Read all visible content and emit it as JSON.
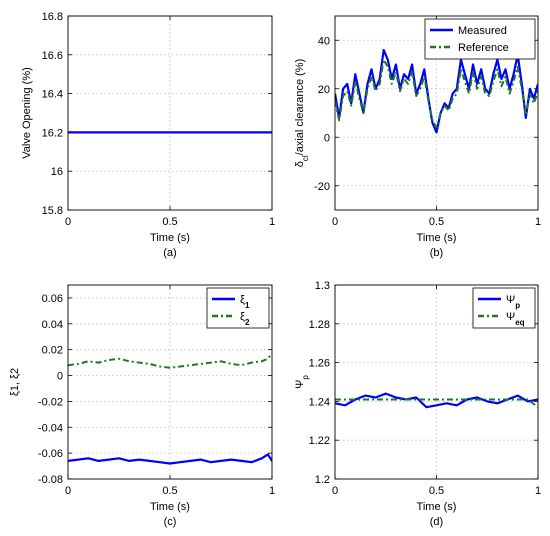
{
  "colors": {
    "measured": "#0000ff",
    "reference": "#1f7a1f",
    "grid": "#bfbfbf",
    "axis": "#000000"
  },
  "chart_data": [
    {
      "id": "a",
      "type": "line",
      "caption": "(a)",
      "xlabel": "Time (s)",
      "ylabel": "Valve Opening (%)",
      "xlim": [
        0,
        1
      ],
      "ylim": [
        15.8,
        16.8
      ],
      "xticks": [
        "0",
        "0.5",
        "1"
      ],
      "yticks": [
        "15.8",
        "16",
        "16.2",
        "16.4",
        "16.6",
        "16.8"
      ],
      "grid": true,
      "legend": null,
      "series": [
        {
          "style": "solid",
          "color": "#0000ff",
          "x": [
            0,
            1
          ],
          "y": [
            16.2,
            16.2
          ]
        }
      ]
    },
    {
      "id": "b",
      "type": "line",
      "caption": "(b)",
      "xlabel": "Time (s)",
      "ylabel": "δcl/axial clearance (%)",
      "ylabel_main": "δ",
      "ylabel_sub": "cl",
      "ylabel_rest": "/axial clearance (%)",
      "xlim": [
        0,
        1
      ],
      "ylim": [
        -30,
        50
      ],
      "xticks": [
        "0",
        "0.5",
        "1"
      ],
      "yticks": [
        "-20",
        "0",
        "20",
        "40"
      ],
      "grid": true,
      "legend": {
        "position": "top-right",
        "entries": [
          "Measured",
          "Reference"
        ]
      },
      "series": [
        {
          "name": "Measured",
          "style": "solid",
          "color": "#0000ff",
          "x": [
            0,
            0.02,
            0.04,
            0.06,
            0.08,
            0.1,
            0.12,
            0.14,
            0.16,
            0.18,
            0.2,
            0.22,
            0.24,
            0.26,
            0.28,
            0.3,
            0.32,
            0.34,
            0.36,
            0.38,
            0.4,
            0.42,
            0.44,
            0.46,
            0.48,
            0.5,
            0.52,
            0.54,
            0.56,
            0.58,
            0.6,
            0.62,
            0.64,
            0.66,
            0.68,
            0.7,
            0.72,
            0.74,
            0.76,
            0.78,
            0.8,
            0.82,
            0.84,
            0.86,
            0.88,
            0.9,
            0.92,
            0.94,
            0.96,
            0.98,
            1
          ],
          "y": [
            18,
            8,
            20,
            22,
            14,
            26,
            18,
            10,
            22,
            28,
            20,
            24,
            36,
            32,
            24,
            30,
            20,
            26,
            24,
            30,
            18,
            22,
            28,
            16,
            6,
            2,
            10,
            14,
            12,
            18,
            20,
            32,
            26,
            20,
            30,
            22,
            28,
            20,
            18,
            26,
            32,
            24,
            28,
            20,
            26,
            34,
            22,
            8,
            20,
            16,
            22
          ]
        },
        {
          "name": "Reference",
          "style": "dashdot",
          "color": "#1f7a1f",
          "x": [
            0,
            0.02,
            0.04,
            0.06,
            0.08,
            0.1,
            0.12,
            0.14,
            0.16,
            0.18,
            0.2,
            0.22,
            0.24,
            0.26,
            0.28,
            0.3,
            0.32,
            0.34,
            0.36,
            0.38,
            0.4,
            0.42,
            0.44,
            0.46,
            0.48,
            0.5,
            0.52,
            0.54,
            0.56,
            0.58,
            0.6,
            0.62,
            0.64,
            0.66,
            0.68,
            0.7,
            0.72,
            0.74,
            0.76,
            0.78,
            0.8,
            0.82,
            0.84,
            0.86,
            0.88,
            0.9,
            0.92,
            0.94,
            0.96,
            0.98,
            1
          ],
          "y": [
            15,
            7,
            17,
            19,
            13,
            23,
            16,
            10,
            20,
            25,
            19,
            22,
            32,
            29,
            22,
            27,
            19,
            24,
            22,
            27,
            17,
            20,
            25,
            15,
            7,
            4,
            10,
            13,
            11,
            16,
            18,
            28,
            23,
            18,
            27,
            20,
            25,
            18,
            17,
            23,
            28,
            21,
            25,
            18,
            23,
            29,
            20,
            9,
            18,
            14,
            19
          ]
        }
      ]
    },
    {
      "id": "c",
      "type": "line",
      "caption": "(c)",
      "xlabel": "Time (s)",
      "ylabel": "ξ1, ξ2",
      "xlim": [
        0,
        1
      ],
      "ylim": [
        -0.08,
        0.07
      ],
      "xticks": [
        "0",
        "0.5",
        "1"
      ],
      "yticks": [
        "-0.08",
        "-0.06",
        "-0.04",
        "-0.02",
        "0",
        "0.02",
        "0.04",
        "0.06"
      ],
      "grid": true,
      "legend": {
        "position": "top-right",
        "entries": [
          "ξ1",
          "ξ2"
        ],
        "main": [
          "ξ",
          "ξ"
        ],
        "sub": [
          "1",
          "2"
        ]
      },
      "series": [
        {
          "name": "ξ1",
          "style": "solid",
          "color": "#0000ff",
          "x": [
            0,
            0.05,
            0.1,
            0.15,
            0.2,
            0.25,
            0.3,
            0.35,
            0.4,
            0.45,
            0.5,
            0.55,
            0.6,
            0.65,
            0.7,
            0.75,
            0.8,
            0.85,
            0.9,
            0.95,
            0.98,
            1
          ],
          "y": [
            -0.066,
            -0.065,
            -0.064,
            -0.066,
            -0.065,
            -0.064,
            -0.066,
            -0.065,
            -0.066,
            -0.067,
            -0.068,
            -0.067,
            -0.066,
            -0.065,
            -0.067,
            -0.066,
            -0.065,
            -0.066,
            -0.067,
            -0.064,
            -0.061,
            -0.066
          ]
        },
        {
          "name": "ξ2",
          "style": "dashdot",
          "color": "#1f7a1f",
          "x": [
            0,
            0.05,
            0.1,
            0.15,
            0.2,
            0.25,
            0.3,
            0.35,
            0.4,
            0.45,
            0.5,
            0.55,
            0.6,
            0.65,
            0.7,
            0.75,
            0.8,
            0.85,
            0.9,
            0.95,
            0.98,
            1
          ],
          "y": [
            0.008,
            0.009,
            0.011,
            0.01,
            0.012,
            0.013,
            0.011,
            0.01,
            0.009,
            0.007,
            0.006,
            0.007,
            0.008,
            0.009,
            0.01,
            0.011,
            0.009,
            0.008,
            0.01,
            0.011,
            0.013,
            0.017
          ]
        }
      ]
    },
    {
      "id": "d",
      "type": "line",
      "caption": "(d)",
      "xlabel": "Time (s)",
      "ylabel": "Ψp",
      "ylabel_main": "Ψ",
      "ylabel_sub": "p",
      "xlim": [
        0,
        1
      ],
      "ylim": [
        1.2,
        1.3
      ],
      "xticks": [
        "0",
        "0.5",
        "1"
      ],
      "yticks": [
        "1.2",
        "1.22",
        "1.24",
        "1.26",
        "1.28",
        "1.3"
      ],
      "grid": true,
      "legend": {
        "position": "top-right",
        "entries": [
          "Ψp",
          "Ψeq"
        ],
        "main": [
          "Ψ",
          "Ψ"
        ],
        "sub": [
          "p",
          "eq"
        ]
      },
      "series": [
        {
          "name": "Ψp",
          "style": "solid",
          "color": "#0000ff",
          "x": [
            0,
            0.05,
            0.1,
            0.15,
            0.2,
            0.25,
            0.3,
            0.35,
            0.4,
            0.45,
            0.5,
            0.55,
            0.6,
            0.65,
            0.7,
            0.75,
            0.8,
            0.85,
            0.9,
            0.95,
            1
          ],
          "y": [
            1.239,
            1.238,
            1.241,
            1.243,
            1.242,
            1.244,
            1.242,
            1.241,
            1.242,
            1.237,
            1.238,
            1.239,
            1.238,
            1.241,
            1.242,
            1.24,
            1.239,
            1.241,
            1.243,
            1.24,
            1.241
          ]
        },
        {
          "name": "Ψeq",
          "style": "dashdot",
          "color": "#1f7a1f",
          "x": [
            0,
            0.1,
            0.2,
            0.3,
            0.4,
            0.5,
            0.6,
            0.7,
            0.8,
            0.9,
            0.95,
            1
          ],
          "y": [
            1.241,
            1.241,
            1.241,
            1.241,
            1.241,
            1.241,
            1.241,
            1.241,
            1.241,
            1.241,
            1.241,
            1.237
          ]
        }
      ]
    }
  ]
}
